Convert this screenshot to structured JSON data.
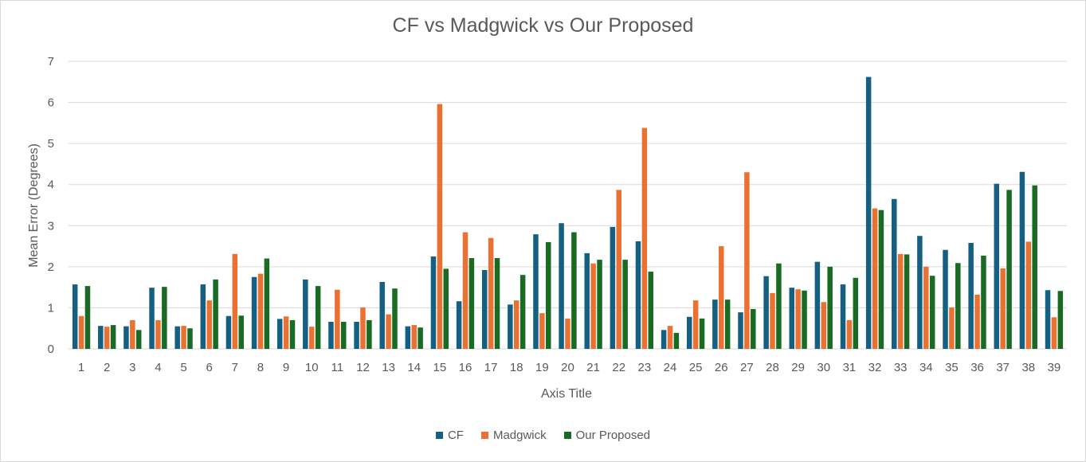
{
  "chart_data": {
    "type": "bar",
    "title": "CF vs Madgwick vs Our Proposed",
    "xlabel": "Axis Title",
    "ylabel": "Mean Error (Degrees)",
    "ylim": [
      0,
      7
    ],
    "yticks": [
      0,
      1,
      2,
      3,
      4,
      5,
      6,
      7
    ],
    "grid": true,
    "legend": "bottom",
    "categories": [
      "1",
      "2",
      "3",
      "4",
      "5",
      "6",
      "7",
      "8",
      "9",
      "10",
      "11",
      "12",
      "13",
      "14",
      "15",
      "16",
      "17",
      "18",
      "19",
      "20",
      "21",
      "22",
      "23",
      "24",
      "25",
      "26",
      "27",
      "28",
      "29",
      "30",
      "31",
      "32",
      "33",
      "34",
      "35",
      "36",
      "37",
      "38",
      "39"
    ],
    "series": [
      {
        "name": "CF",
        "color": "#156082",
        "values": [
          1.57,
          0.56,
          0.55,
          1.49,
          0.55,
          1.57,
          0.8,
          1.75,
          0.73,
          1.69,
          0.66,
          0.66,
          1.63,
          0.55,
          2.25,
          1.16,
          1.92,
          1.08,
          2.79,
          3.06,
          2.33,
          2.97,
          2.62,
          0.46,
          0.78,
          1.2,
          0.89,
          1.77,
          1.49,
          2.12,
          1.57,
          6.62,
          3.65,
          2.75,
          2.41,
          2.58,
          4.02,
          4.31,
          1.43
        ]
      },
      {
        "name": "Madgwick",
        "color": "#E97132",
        "values": [
          0.8,
          0.54,
          0.7,
          0.7,
          0.56,
          1.18,
          2.31,
          1.83,
          0.79,
          0.54,
          1.44,
          1.01,
          0.84,
          0.58,
          5.96,
          2.84,
          2.7,
          1.18,
          0.87,
          0.74,
          2.08,
          3.87,
          5.38,
          0.56,
          1.18,
          2.5,
          4.3,
          1.36,
          1.45,
          1.14,
          0.7,
          3.42,
          2.31,
          2.0,
          1.01,
          1.32,
          1.96,
          2.61,
          0.77
        ]
      },
      {
        "name": "Our Proposed",
        "color": "#196B24",
        "values": [
          1.53,
          0.58,
          0.46,
          1.51,
          0.5,
          1.69,
          0.81,
          2.2,
          0.7,
          1.53,
          0.66,
          0.7,
          1.47,
          0.52,
          1.95,
          2.21,
          2.21,
          1.8,
          2.6,
          2.84,
          2.17,
          2.17,
          1.88,
          0.39,
          0.74,
          1.2,
          0.97,
          2.08,
          1.42,
          2.0,
          1.73,
          3.38,
          2.3,
          1.78,
          2.09,
          2.27,
          3.87,
          3.98,
          1.41
        ]
      }
    ]
  }
}
